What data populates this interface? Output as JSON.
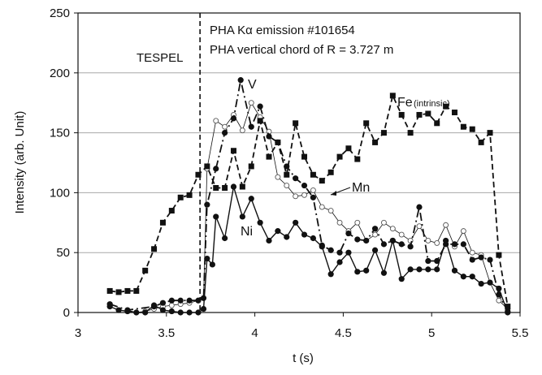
{
  "chart_data": {
    "type": "line",
    "title": "",
    "xlabel": "t (s)",
    "ylabel": "Intensity (arb. Unit)",
    "xlim": [
      3,
      5.5
    ],
    "ylim": [
      0,
      250
    ],
    "x_ticks": [
      3,
      3.5,
      4,
      4.5,
      5,
      5.5
    ],
    "x_tick_labels": [
      "3",
      "3.5",
      "4",
      "4.5",
      "5",
      "5.5"
    ],
    "y_ticks": [
      0,
      50,
      100,
      150,
      200,
      250
    ],
    "y_tick_labels": [
      "0",
      "50",
      "100",
      "150",
      "200",
      "250"
    ],
    "grid": "horizontal",
    "annotations": {
      "line1": "PHA Kα emission #101654",
      "line2": "PHA vertical chord of R = 3.727 m",
      "tespel": "TESPEL",
      "tespel_time": 3.69
    },
    "series": [
      {
        "name": "Fe (intrinsic)",
        "label_main": "Fe",
        "label_sub": "(intrinsic)",
        "marker": "square",
        "line_style": "dashed",
        "x": [
          3.18,
          3.23,
          3.28,
          3.33,
          3.38,
          3.43,
          3.48,
          3.53,
          3.58,
          3.63,
          3.68,
          3.73,
          3.78,
          3.83,
          3.88,
          3.93,
          3.98,
          4.03,
          4.08,
          4.13,
          4.18,
          4.23,
          4.28,
          4.33,
          4.38,
          4.43,
          4.48,
          4.53,
          4.58,
          4.63,
          4.68,
          4.73,
          4.78,
          4.83,
          4.88,
          4.93,
          4.98,
          5.03,
          5.08,
          5.13,
          5.18,
          5.23,
          5.28,
          5.33,
          5.38,
          5.43
        ],
        "y": [
          18,
          17,
          18,
          18,
          35,
          53,
          75,
          85,
          96,
          98,
          115,
          122,
          104,
          104,
          135,
          105,
          122,
          160,
          130,
          142,
          115,
          158,
          130,
          115,
          110,
          117,
          130,
          137,
          128,
          158,
          142,
          150,
          181,
          165,
          150,
          165,
          166,
          158,
          172,
          167,
          155,
          153,
          142,
          150,
          48,
          5
        ]
      },
      {
        "name": "V",
        "label_main": "V",
        "marker": "circle",
        "line_style": "dashdot",
        "x": [
          3.18,
          3.28,
          3.43,
          3.48,
          3.53,
          3.58,
          3.63,
          3.68,
          3.71,
          3.73,
          3.78,
          3.83,
          3.88,
          3.92,
          3.98,
          4.03,
          4.08,
          4.13,
          4.18,
          4.23,
          4.28,
          4.33,
          4.38,
          4.43,
          4.48,
          4.53,
          4.58,
          4.63,
          4.68,
          4.73,
          4.78,
          4.83,
          4.88,
          4.93,
          4.98,
          5.03,
          5.08,
          5.13,
          5.18,
          5.23,
          5.28,
          5.33,
          5.38,
          5.43
        ],
        "y": [
          7,
          2,
          5,
          8,
          10,
          10,
          10,
          10,
          12,
          90,
          120,
          150,
          162,
          194,
          155,
          172,
          147,
          142,
          122,
          112,
          106,
          96,
          56,
          52,
          50,
          66,
          61,
          60,
          70,
          57,
          60,
          57,
          55,
          88,
          43,
          43,
          57,
          57,
          57,
          44,
          46,
          44,
          15,
          1
        ]
      },
      {
        "name": "Mn",
        "label_main": "Mn",
        "marker": "circle-open",
        "line_style": "solid-thin",
        "x": [
          3.28,
          3.33,
          3.38,
          3.43,
          3.48,
          3.53,
          3.58,
          3.63,
          3.68,
          3.71,
          3.73,
          3.78,
          3.83,
          3.88,
          3.93,
          3.98,
          4.03,
          4.08,
          4.13,
          4.18,
          4.23,
          4.28,
          4.33,
          4.38,
          4.43,
          4.48,
          4.53,
          4.58,
          4.63,
          4.68,
          4.73,
          4.78,
          4.83,
          4.88,
          4.93,
          4.98,
          5.03,
          5.08,
          5.13,
          5.18,
          5.23,
          5.28,
          5.33,
          5.38,
          5.43
        ],
        "y": [
          2,
          0,
          1,
          3,
          5,
          6,
          7,
          8,
          10,
          12,
          120,
          160,
          155,
          165,
          152,
          175,
          163,
          151,
          113,
          106,
          97,
          98,
          102,
          88,
          85,
          75,
          68,
          75,
          60,
          65,
          75,
          70,
          65,
          60,
          72,
          60,
          58,
          73,
          55,
          68,
          50,
          48,
          25,
          10,
          3
        ]
      },
      {
        "name": "Ni",
        "label_main": "Ni",
        "marker": "circle",
        "line_style": "solid",
        "x": [
          3.18,
          3.23,
          3.28,
          3.33,
          3.38,
          3.43,
          3.48,
          3.53,
          3.58,
          3.63,
          3.68,
          3.71,
          3.73,
          3.76,
          3.78,
          3.83,
          3.88,
          3.93,
          3.98,
          4.03,
          4.08,
          4.13,
          4.18,
          4.23,
          4.28,
          4.33,
          4.38,
          4.43,
          4.48,
          4.53,
          4.58,
          4.63,
          4.68,
          4.73,
          4.78,
          4.83,
          4.88,
          4.93,
          4.98,
          5.03,
          5.08,
          5.13,
          5.18,
          5.23,
          5.28,
          5.33,
          5.38,
          5.43
        ],
        "y": [
          5,
          2,
          1,
          0,
          0,
          6,
          2,
          1,
          0,
          0,
          0,
          3,
          45,
          40,
          80,
          62,
          105,
          80,
          95,
          75,
          60,
          68,
          63,
          75,
          65,
          62,
          55,
          32,
          42,
          50,
          34,
          35,
          52,
          33,
          60,
          28,
          36,
          36,
          36,
          36,
          60,
          35,
          30,
          30,
          24,
          25,
          20,
          0
        ]
      }
    ]
  }
}
